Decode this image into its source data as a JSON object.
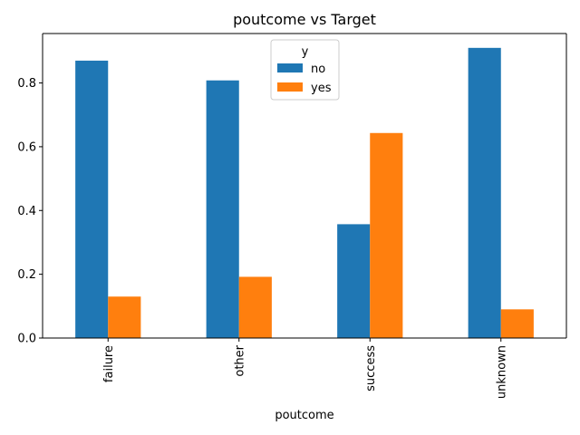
{
  "chart_data": {
    "type": "bar",
    "title": "poutcome vs Target",
    "xlabel": "poutcome",
    "ylabel": "",
    "categories": [
      "failure",
      "other",
      "success",
      "unknown"
    ],
    "series": [
      {
        "name": "no",
        "color": "#1f77b4",
        "values": [
          0.87,
          0.808,
          0.357,
          0.91
        ]
      },
      {
        "name": "yes",
        "color": "#ff7f0e",
        "values": [
          0.13,
          0.192,
          0.643,
          0.09
        ]
      }
    ],
    "ylim": [
      0,
      0.955
    ],
    "yticks": [
      0.0,
      0.2,
      0.4,
      0.6,
      0.8
    ],
    "ytick_labels": [
      "0.0",
      "0.2",
      "0.4",
      "0.6",
      "0.8"
    ],
    "legend": {
      "title": "y",
      "position": "top-center"
    },
    "grid": false
  }
}
